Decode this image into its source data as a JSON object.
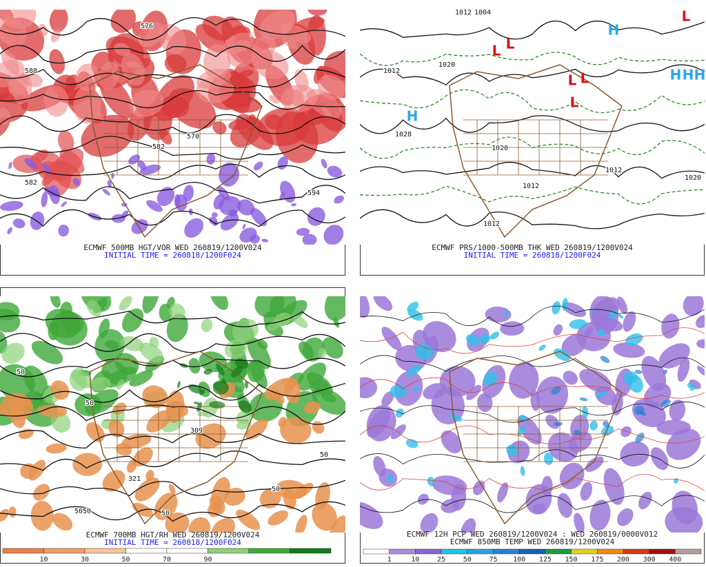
{
  "panels": [
    {
      "caption": "ECMWF 500MB HGT/VOR WED 260819/1200V024",
      "subcaption": "INITIAL TIME = 260818/1200F024",
      "map_labels": [
        "588",
        "576",
        "582",
        "570",
        "582",
        "594"
      ]
    },
    {
      "caption": "ECMWF PRS/1000-500MB THK WED 260819/1200V024",
      "subcaption": "INITIAL TIME = 260818/1200F024",
      "map_labels": [
        "1012",
        "1004",
        "1012",
        "1020",
        "1028",
        "1020",
        "1012",
        "1012",
        "1012",
        "1020",
        "H",
        "H",
        "H",
        "H",
        "H",
        "L",
        "L",
        "L",
        "L",
        "L",
        "L"
      ]
    },
    {
      "caption": "ECMWF 700MB HGT/RH WED 260819/1200V024",
      "subcaption": "INITIAL TIME = 260818/1200F024",
      "map_labels": [
        "50",
        "50",
        "309",
        "321",
        "5050",
        "50",
        "50",
        "50"
      ],
      "colorbar": {
        "ticks": [
          10,
          30,
          50,
          70,
          90
        ],
        "colors": [
          "#e8824a",
          "#f0a066",
          "#f7c49c",
          "#ffffff",
          "#ffffff",
          "#8fd17a",
          "#3fa83a",
          "#137a1a"
        ]
      }
    },
    {
      "caption": "ECMWF 12H PCP WED 260819/1200V024 : WED 260819/0000V012",
      "subcaption": "ECMWF 850MB TEMP WED 260819/1200V024",
      "map_labels": [],
      "colorbar": {
        "ticks": [
          1,
          10,
          25,
          50,
          75,
          100,
          125,
          150,
          175,
          200,
          300,
          400
        ],
        "colors": [
          "#ffffff",
          "#a98bdc",
          "#8a64d0",
          "#19c8e8",
          "#27a3e0",
          "#2a7fd6",
          "#1a5fb0",
          "#1c9c3a",
          "#e0d020",
          "#f08a10",
          "#d63a10",
          "#a01010",
          "#b89b9b"
        ]
      }
    }
  ]
}
